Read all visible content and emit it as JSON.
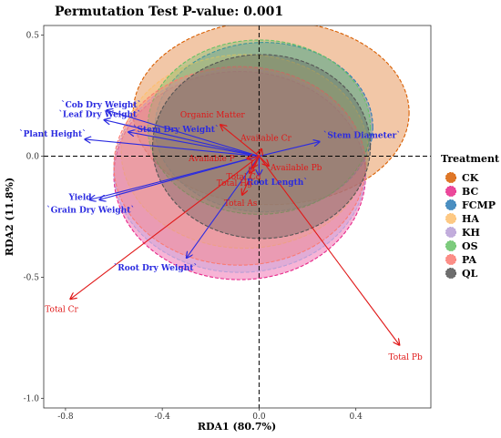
{
  "chart_data": {
    "type": "scatter",
    "title": "Permutation Test P-value: 0.001",
    "xlabel": "RDA1  (80.7%)",
    "ylabel": "RDA2  (11.8%)",
    "xlim": [
      -0.89,
      0.71
    ],
    "ylim": [
      -1.04,
      0.54
    ],
    "xticks": [
      -0.8,
      -0.4,
      0.0,
      0.4
    ],
    "xtick_labels": [
      "-0.8",
      "-0.4",
      "0.0",
      "0.4"
    ],
    "yticks": [
      0.5,
      0.0,
      -0.5,
      -1.0
    ],
    "ytick_labels": [
      "0.5",
      "0.0",
      "-0.5",
      "-1.0"
    ],
    "reference_lines": {
      "x": 0,
      "y": 0,
      "style": "dashed"
    },
    "legend": {
      "title": "Treatment",
      "placement": "right"
    },
    "groups": [
      {
        "name": "CK",
        "color": "#d95f02",
        "cx": 0.05,
        "cy": 0.18,
        "rx": 0.57,
        "ry": 0.38
      },
      {
        "name": "BC",
        "color": "#e7298a",
        "cx": -0.08,
        "cy": -0.08,
        "rx": 0.52,
        "ry": 0.43
      },
      {
        "name": "FCMP",
        "color": "#2c7bb6",
        "cx": 0.02,
        "cy": 0.12,
        "rx": 0.45,
        "ry": 0.35
      },
      {
        "name": "HA",
        "color": "#fdbf6f",
        "cx": -0.06,
        "cy": 0.02,
        "rx": 0.51,
        "ry": 0.4
      },
      {
        "name": "KH",
        "color": "#b79fd6",
        "cx": -0.08,
        "cy": -0.06,
        "rx": 0.52,
        "ry": 0.42
      },
      {
        "name": "OS",
        "color": "#66c266",
        "cx": 0.0,
        "cy": 0.12,
        "rx": 0.46,
        "ry": 0.36
      },
      {
        "name": "PA",
        "color": "#fb7a72",
        "cx": -0.08,
        "cy": -0.04,
        "rx": 0.52,
        "ry": 0.41
      },
      {
        "name": "QL",
        "color": "#555555",
        "cx": 0.01,
        "cy": 0.04,
        "rx": 0.45,
        "ry": 0.38
      }
    ],
    "biplot_vectors_blue": [
      {
        "label": "`Cob Dry Weight`",
        "x": -0.63,
        "y": 0.19
      },
      {
        "label": "`Leaf Dry Weight`",
        "x": -0.64,
        "y": 0.15
      },
      {
        "label": "`Plant Height`",
        "x": -0.72,
        "y": 0.07
      },
      {
        "label": "`Stem Dry Weight`",
        "x": -0.54,
        "y": 0.1
      },
      {
        "label": "`Stem Diameter`",
        "x": 0.25,
        "y": 0.06
      },
      {
        "label": "`Root Length`",
        "x": 0.0,
        "y": -0.08
      },
      {
        "label": "Yield",
        "x": -0.7,
        "y": -0.18
      },
      {
        "label": "`Grain Dry Weight`",
        "x": -0.66,
        "y": -0.18
      },
      {
        "label": "`Root Dry Weight`",
        "x": -0.3,
        "y": -0.42
      }
    ],
    "biplot_vectors_red": [
      {
        "label": "Organic Matter",
        "x": -0.16,
        "y": 0.13
      },
      {
        "label": "Available Cr",
        "x": 0.01,
        "y": 0.03
      },
      {
        "label": "Available P",
        "x": -0.05,
        "y": -0.01
      },
      {
        "label": "Total Cd",
        "x": -0.03,
        "y": -0.05
      },
      {
        "label": "Total Hg",
        "x": -0.04,
        "y": -0.07
      },
      {
        "label": "Available Pb",
        "x": 0.04,
        "y": -0.04
      },
      {
        "label": "Total As",
        "x": -0.07,
        "y": -0.16
      },
      {
        "label": "Total Cr",
        "x": -0.78,
        "y": -0.59
      },
      {
        "label": "Total Pb",
        "x": 0.58,
        "y": -0.78
      }
    ]
  }
}
